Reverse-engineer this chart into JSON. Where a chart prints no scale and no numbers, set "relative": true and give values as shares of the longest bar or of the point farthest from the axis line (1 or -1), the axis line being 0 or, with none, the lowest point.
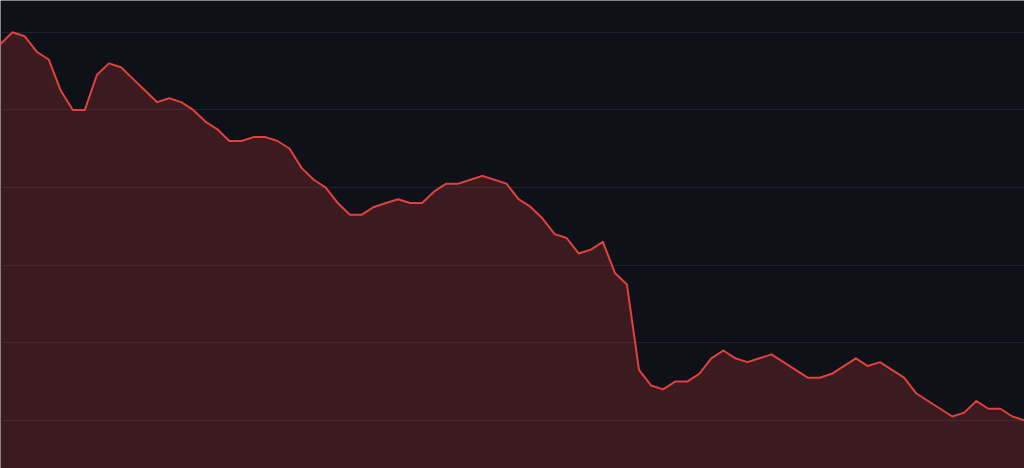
{
  "chart_data": {
    "type": "area",
    "relative": true,
    "grid": "y",
    "categories": [
      null,
      null,
      null,
      null,
      null,
      null,
      null,
      null,
      null,
      null,
      null,
      null,
      null,
      null,
      null,
      null,
      null,
      null,
      null,
      null,
      null,
      null,
      null,
      null,
      null,
      null,
      null,
      null,
      null,
      null,
      null,
      null,
      null,
      null,
      null,
      null,
      null,
      null,
      null,
      null,
      null,
      null,
      null,
      null,
      null,
      null,
      null,
      null,
      null,
      null,
      null,
      null,
      null,
      null,
      null,
      null,
      null,
      null,
      null,
      null,
      null,
      null,
      null,
      null,
      null,
      null,
      null,
      null,
      null,
      null,
      null,
      null,
      null,
      null,
      null,
      null,
      null,
      null,
      null,
      null,
      null,
      null,
      null,
      null,
      null,
      null
    ],
    "series": [
      {
        "color": "#e0413f",
        "values": [
          0.97,
          1.0,
          0.99,
          0.95,
          0.93,
          0.85,
          0.8,
          0.8,
          0.89,
          0.92,
          0.91,
          0.88,
          0.85,
          0.82,
          0.83,
          0.82,
          0.8,
          0.77,
          0.75,
          0.72,
          0.72,
          0.73,
          0.73,
          0.72,
          0.7,
          0.65,
          0.62,
          0.6,
          0.56,
          0.53,
          0.53,
          0.55,
          0.56,
          0.57,
          0.56,
          0.56,
          0.59,
          0.61,
          0.61,
          0.62,
          0.63,
          0.62,
          0.61,
          0.57,
          0.55,
          0.52,
          0.48,
          0.47,
          0.43,
          0.44,
          0.46,
          0.38,
          0.35,
          0.13,
          0.09,
          0.08,
          0.1,
          0.1,
          0.12,
          0.16,
          0.18,
          0.16,
          0.15,
          0.16,
          0.17,
          0.15,
          0.13,
          0.11,
          0.11,
          0.12,
          0.14,
          0.16,
          0.14,
          0.15,
          0.13,
          0.11,
          0.07,
          0.05,
          0.03,
          0.01,
          0.02,
          0.05,
          0.03,
          0.03,
          0.01,
          0.0
        ]
      }
    ]
  }
}
